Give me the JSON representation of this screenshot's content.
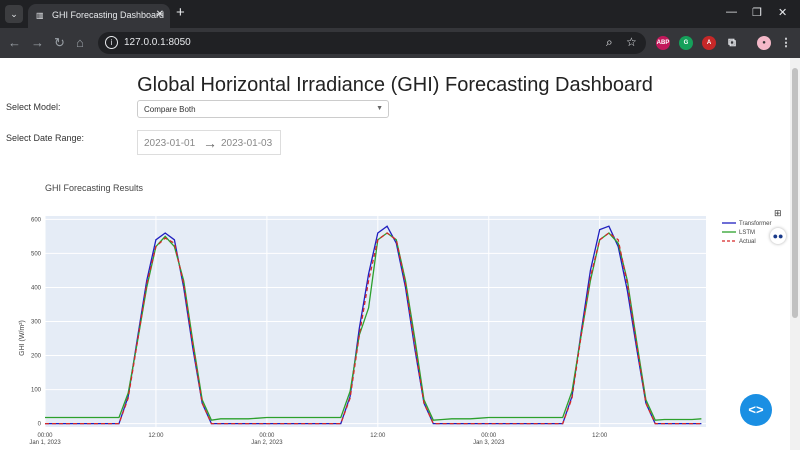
{
  "browser": {
    "tab_title": "GHI Forecasting Dashboard",
    "url": "127.0.0.1:8050"
  },
  "page": {
    "title": "Global Horizontal Irradiance (GHI) Forecasting Dashboard",
    "model_label": "Select Model:",
    "model_value": "Compare Both",
    "date_label": "Select Date Range:",
    "start_date": "2023-01-01",
    "end_date": "2023-01-03",
    "chart_title": "GHI Forecasting Results"
  },
  "chart_data": {
    "type": "line",
    "title": "GHI Forecasting Results",
    "xlabel": "",
    "ylabel": "GHI (W/m²)",
    "ylim": [
      -10,
      610
    ],
    "yticks": [
      0,
      100,
      200,
      300,
      400,
      500,
      600
    ],
    "xtick_labels": [
      {
        "hour": 0,
        "line1": "00:00",
        "line2": "Jan 1, 2023"
      },
      {
        "hour": 12,
        "line1": "12:00",
        "line2": ""
      },
      {
        "hour": 24,
        "line1": "00:00",
        "line2": "Jan 2, 2023"
      },
      {
        "hour": 36,
        "line1": "12:00",
        "line2": ""
      },
      {
        "hour": 48,
        "line1": "00:00",
        "line2": "Jan 3, 2023"
      },
      {
        "hour": 60,
        "line1": "12:00",
        "line2": ""
      }
    ],
    "x_hours": [
      0,
      1,
      2,
      3,
      4,
      5,
      6,
      7,
      8,
      9,
      10,
      11,
      12,
      13,
      14,
      15,
      16,
      17,
      18,
      19,
      20,
      21,
      22,
      23,
      24,
      25,
      26,
      27,
      28,
      29,
      30,
      31,
      32,
      33,
      34,
      35,
      36,
      37,
      38,
      39,
      40,
      41,
      42,
      43,
      44,
      45,
      46,
      47,
      48,
      49,
      50,
      51,
      52,
      53,
      54,
      55,
      56,
      57,
      58,
      59,
      60,
      61,
      62,
      63,
      64,
      65,
      66,
      67,
      68,
      69,
      70,
      71
    ],
    "legend_position": "right",
    "series": [
      {
        "name": "Transformer",
        "color": "#1f1fbf",
        "dash": "solid",
        "values": [
          0,
          0,
          0,
          0,
          0,
          0,
          0,
          0,
          0,
          80,
          250,
          420,
          540,
          560,
          540,
          400,
          220,
          60,
          0,
          0,
          0,
          0,
          0,
          0,
          0,
          0,
          0,
          0,
          0,
          0,
          0,
          0,
          0,
          80,
          280,
          440,
          560,
          580,
          530,
          400,
          220,
          60,
          0,
          0,
          0,
          0,
          0,
          0,
          0,
          0,
          0,
          0,
          0,
          0,
          0,
          0,
          0,
          80,
          270,
          450,
          570,
          580,
          520,
          390,
          220,
          60,
          0,
          0,
          0,
          0,
          0,
          0
        ]
      },
      {
        "name": "LSTM",
        "color": "#2ca02c",
        "dash": "solid",
        "values": [
          18,
          18,
          18,
          18,
          18,
          18,
          18,
          18,
          18,
          90,
          240,
          400,
          520,
          550,
          520,
          420,
          240,
          70,
          10,
          14,
          14,
          14,
          14,
          16,
          18,
          18,
          18,
          18,
          18,
          18,
          18,
          18,
          18,
          95,
          260,
          340,
          540,
          560,
          540,
          420,
          250,
          70,
          10,
          12,
          14,
          14,
          14,
          16,
          18,
          18,
          18,
          18,
          18,
          18,
          18,
          18,
          18,
          95,
          260,
          420,
          540,
          560,
          530,
          420,
          240,
          70,
          10,
          12,
          12,
          12,
          12,
          14
        ]
      },
      {
        "name": "Actual",
        "color": "#d62728",
        "dash": "dashed",
        "values": [
          0,
          0,
          0,
          0,
          0,
          0,
          0,
          0,
          0,
          75,
          240,
          410,
          520,
          545,
          530,
          410,
          230,
          60,
          0,
          0,
          0,
          0,
          0,
          0,
          0,
          0,
          0,
          0,
          0,
          0,
          0,
          0,
          0,
          75,
          260,
          420,
          540,
          560,
          540,
          410,
          230,
          60,
          0,
          0,
          0,
          0,
          0,
          0,
          0,
          0,
          0,
          0,
          0,
          0,
          0,
          0,
          0,
          75,
          260,
          430,
          540,
          560,
          540,
          410,
          230,
          60,
          0,
          0,
          0,
          0,
          0,
          0
        ]
      }
    ]
  }
}
